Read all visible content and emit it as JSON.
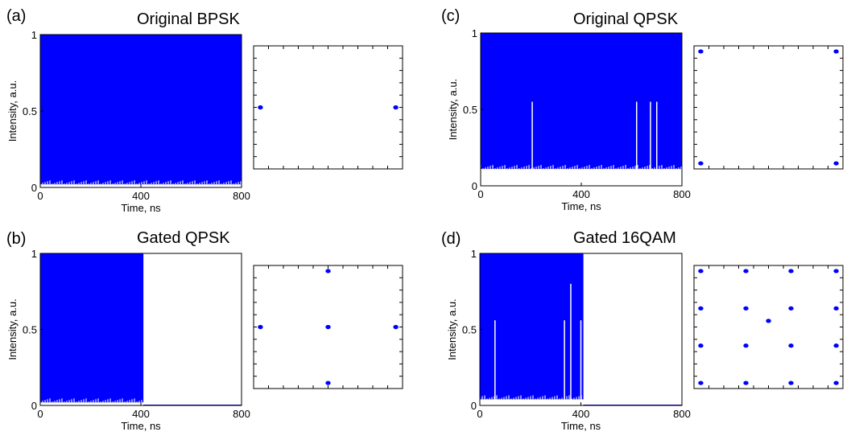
{
  "figure": {
    "panels": [
      {
        "id": "a",
        "letter": "(a)",
        "title": "Original BPSK",
        "xlabel": "Time, ns",
        "ylabel": "Intensity, a.u.",
        "xticks": [
          "0",
          "400",
          "800"
        ],
        "yticks": [
          "0",
          "0.5",
          "1"
        ]
      },
      {
        "id": "b",
        "letter": "(b)",
        "title": "Gated QPSK",
        "xlabel": "Time, ns",
        "ylabel": "Intensity, a.u.",
        "xticks": [
          "0",
          "400",
          "800"
        ],
        "yticks": [
          "0",
          "0.5",
          "1"
        ]
      },
      {
        "id": "c",
        "letter": "(c)",
        "title": "Original QPSK",
        "xlabel": "Time, ns",
        "ylabel": "Intensity, a.u.",
        "xticks": [
          "0",
          "400",
          "800"
        ],
        "yticks": [
          "0",
          "0.5",
          "1"
        ]
      },
      {
        "id": "d",
        "letter": "(d)",
        "title": "Gated 16QAM",
        "xlabel": "Time, ns",
        "ylabel": "Intensity, a.u.",
        "xticks": [
          "0",
          "400",
          "800"
        ],
        "yticks": [
          "0",
          "0.5",
          "1"
        ]
      }
    ]
  },
  "chart_data": [
    {
      "type": "area",
      "panel": "a",
      "title": "Original BPSK",
      "xlabel": "Time, ns",
      "ylabel": "Intensity, a.u.",
      "xlim": [
        0,
        800
      ],
      "ylim": [
        0,
        1
      ],
      "fill_color": "#0000ff",
      "fill_x_range": [
        0,
        800
      ],
      "fill_y_range": [
        0.02,
        1
      ],
      "dips": []
    },
    {
      "type": "area",
      "panel": "b",
      "title": "Gated QPSK",
      "xlabel": "Time, ns",
      "ylabel": "Intensity, a.u.",
      "xlim": [
        0,
        800
      ],
      "ylim": [
        0,
        1
      ],
      "fill_color": "#0000ff",
      "fill_x_range": [
        0,
        410
      ],
      "fill_y_range": [
        0.02,
        1
      ],
      "dips": []
    },
    {
      "type": "area",
      "panel": "c",
      "title": "Original QPSK",
      "xlabel": "Time, ns",
      "ylabel": "Intensity, a.u.",
      "xlim": [
        0,
        800
      ],
      "ylim": [
        0,
        1
      ],
      "fill_color": "#0000ff",
      "fill_x_range": [
        0,
        800
      ],
      "fill_y_range": [
        0.11,
        1
      ],
      "dips": [
        {
          "x": 205,
          "y": 0.55
        },
        {
          "x": 620,
          "y": 0.55
        },
        {
          "x": 675,
          "y": 0.55
        },
        {
          "x": 700,
          "y": 0.55
        }
      ]
    },
    {
      "type": "area",
      "panel": "d",
      "title": "Gated 16QAM",
      "xlabel": "Time, ns",
      "ylabel": "Intensity, a.u.",
      "xlim": [
        0,
        800
      ],
      "ylim": [
        0,
        1
      ],
      "fill_color": "#0000ff",
      "fill_x_range": [
        0,
        410
      ],
      "fill_y_range": [
        0.04,
        1
      ],
      "dips": [
        {
          "x": 60,
          "y": 0.56
        },
        {
          "x": 335,
          "y": 0.56
        },
        {
          "x": 360,
          "y": 0.8
        },
        {
          "x": 400,
          "y": 0.56
        }
      ]
    },
    {
      "type": "scatter",
      "panel": "a",
      "title": "",
      "marker_color": "#0000ff",
      "xlim": [
        -1.1,
        1.1
      ],
      "ylim": [
        -1.1,
        1.1
      ],
      "x": [
        -1,
        1
      ],
      "y": [
        0,
        0
      ]
    },
    {
      "type": "scatter",
      "panel": "b",
      "title": "",
      "marker_color": "#0000ff",
      "xlim": [
        -1.1,
        1.1
      ],
      "ylim": [
        -1.1,
        1.1
      ],
      "x": [
        0,
        -1,
        0,
        1,
        0
      ],
      "y": [
        1,
        0,
        0,
        0,
        -1
      ]
    },
    {
      "type": "scatter",
      "panel": "c",
      "title": "",
      "marker_color": "#0000ff",
      "xlim": [
        -1.1,
        1.1
      ],
      "ylim": [
        -1.1,
        1.1
      ],
      "x": [
        -1,
        1,
        -1,
        1
      ],
      "y": [
        1,
        1,
        -1,
        -1
      ]
    },
    {
      "type": "scatter",
      "panel": "d",
      "title": "",
      "marker_color": "#0000ff",
      "xlim": [
        -1.1,
        1.1
      ],
      "ylim": [
        -1.1,
        1.1
      ],
      "x": [
        -1,
        -0.333,
        0.333,
        1,
        -1,
        -0.333,
        0.333,
        1,
        0,
        -1,
        -0.333,
        0.333,
        1,
        -1,
        -0.333,
        0.333,
        1
      ],
      "y": [
        1,
        1,
        1,
        1,
        0.333,
        0.333,
        0.333,
        0.333,
        0.11,
        -0.333,
        -0.333,
        -0.333,
        -0.333,
        -1,
        -1,
        -1,
        -1
      ]
    }
  ]
}
